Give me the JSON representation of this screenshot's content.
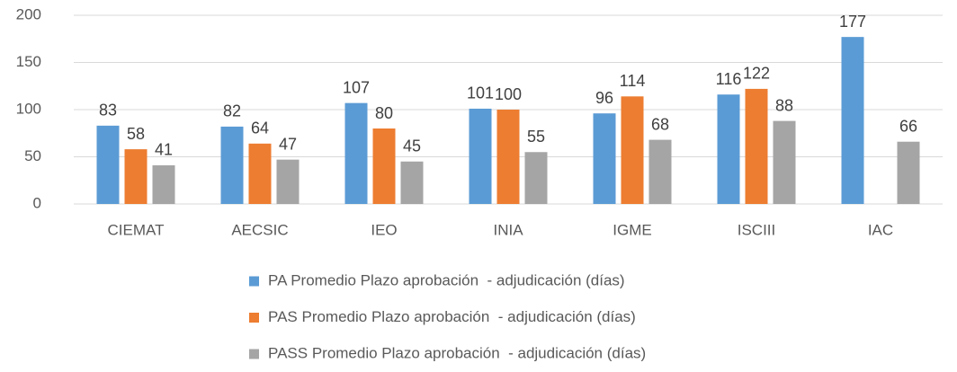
{
  "chart_data": {
    "type": "bar",
    "categories": [
      "CIEMAT",
      "AECSIC",
      "IEO",
      "INIA",
      "IGME",
      "ISCIII",
      "IAC"
    ],
    "series": [
      {
        "name": "PA Promedio Plazo aprobación  - adjudicación (días)",
        "color": "#5b9bd5",
        "values": [
          83,
          82,
          107,
          101,
          96,
          116,
          177
        ]
      },
      {
        "name": "PAS Promedio Plazo aprobación  - adjudicación (días)",
        "color": "#ed7d31",
        "values": [
          58,
          64,
          80,
          100,
          114,
          122,
          null
        ]
      },
      {
        "name": "PASS Promedio Plazo aprobación  - adjudicación (días)",
        "color": "#a5a5a5",
        "values": [
          41,
          47,
          45,
          55,
          68,
          88,
          66
        ]
      }
    ],
    "ylim": [
      0,
      200
    ],
    "yticks": [
      0,
      50,
      100,
      150,
      200
    ],
    "grid": true,
    "legend": "bottom"
  }
}
